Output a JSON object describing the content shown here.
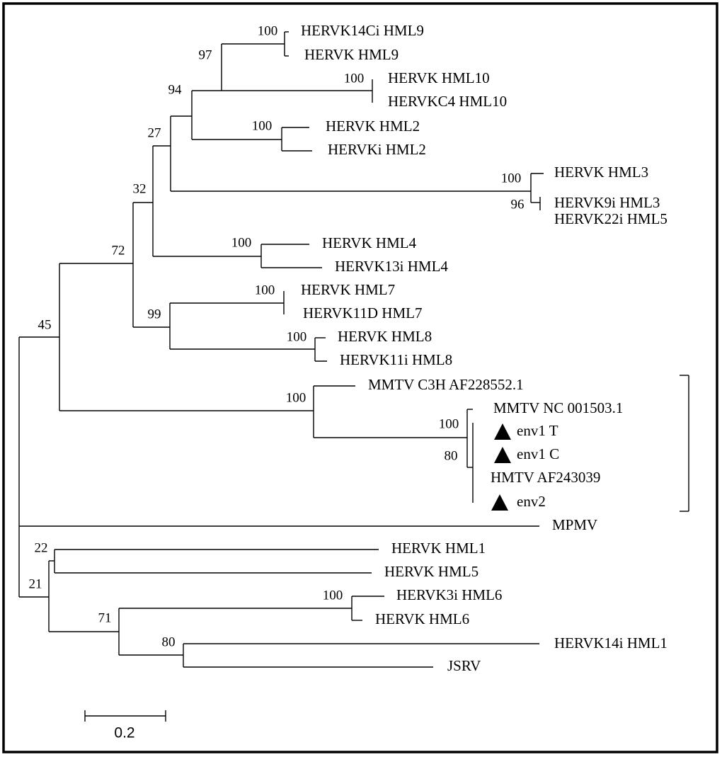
{
  "leaves": [
    "HERVK14Ci HML9",
    "HERVK HML9",
    "HERVK HML10",
    "HERVKC4 HML10",
    "HERVK HML2",
    "HERVKi HML2",
    "HERVK HML3",
    "HERVK9i HML3",
    "HERVK22i HML5",
    "HERVK HML4",
    "HERVK13i HML4",
    "HERVK HML7",
    "HERVK11D HML7",
    "HERVK HML8",
    "HERVK11i HML8",
    "MMTV C3H AF228552.1",
    "MMTV NC 001503.1",
    "env1 T",
    "env1 C",
    "HMTV AF243039",
    "env2",
    "MPMV",
    "HERVK HML1",
    "HERVK HML5",
    "HERVK3i HML6",
    "HERVK HML6",
    "HERVK14i HML1",
    "JSRV"
  ],
  "support": [
    100,
    97,
    100,
    94,
    100,
    27,
    100,
    96,
    32,
    100,
    72,
    100,
    99,
    100,
    45,
    100,
    100,
    80,
    22,
    21,
    100,
    71,
    80
  ],
  "scale_bar": 0.2
}
